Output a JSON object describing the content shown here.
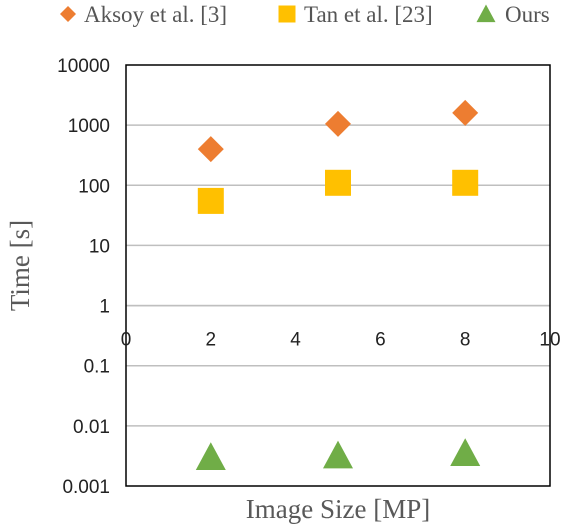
{
  "chart_data": {
    "type": "scatter",
    "title": "",
    "xlabel": "Image Size [MP]",
    "ylabel": "Time [s]",
    "xlim": [
      0,
      10
    ],
    "ylim": [
      0.001,
      10000
    ],
    "yscale": "log",
    "x_ticks": [
      "0",
      "2",
      "4",
      "6",
      "8",
      "10"
    ],
    "y_ticks": [
      "10000",
      "1000",
      "100",
      "10",
      "1",
      "0.1",
      "0.01",
      "0.001"
    ],
    "grid": "horizontal",
    "legend_position": "top",
    "series": [
      {
        "name": "Aksoy et al. [3]",
        "marker": "diamond",
        "color": "#ed7d31",
        "points": [
          {
            "x": 2,
            "y": 400
          },
          {
            "x": 5,
            "y": 1050
          },
          {
            "x": 8,
            "y": 1600
          }
        ]
      },
      {
        "name": "Tan et al. [23]",
        "marker": "square",
        "color": "#ffc000",
        "points": [
          {
            "x": 2,
            "y": 55
          },
          {
            "x": 5,
            "y": 110
          },
          {
            "x": 8,
            "y": 110
          }
        ]
      },
      {
        "name": "Ours",
        "marker": "triangle",
        "color": "#70ad47",
        "points": [
          {
            "x": 2,
            "y": 0.003
          },
          {
            "x": 5,
            "y": 0.0032
          },
          {
            "x": 8,
            "y": 0.0035
          }
        ]
      }
    ]
  }
}
